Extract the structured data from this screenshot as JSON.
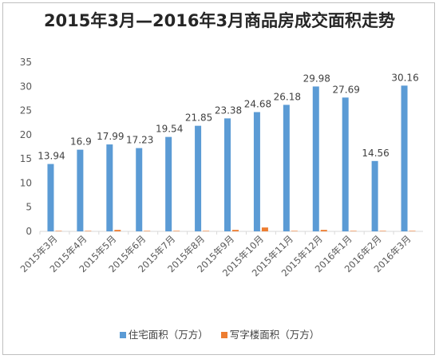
{
  "chart_data": {
    "type": "bar",
    "title": "2015年3月—2016年3月商品房成交面积走势",
    "categories": [
      "2015年3月",
      "2015年4月",
      "2015年5月",
      "2015年6月",
      "2015年7月",
      "2015年8月",
      "2015年9月",
      "2015年10月",
      "2015年11月",
      "2015年12月",
      "2016年1月",
      "2016年2月",
      "2016年3月"
    ],
    "series": [
      {
        "name": "住宅面积（万方）",
        "color": "#5B9BD5",
        "values": [
          13.94,
          16.9,
          17.99,
          17.23,
          19.54,
          21.85,
          23.38,
          24.68,
          26.18,
          29.98,
          27.69,
          14.56,
          30.16
        ],
        "labels": [
          "13.94",
          "16.9",
          "17.99",
          "17.23",
          "19.54",
          "21.85",
          "23.38",
          "24.68",
          "26.18",
          "29.98",
          "27.69",
          "14.56",
          "30.16"
        ]
      },
      {
        "name": "写字楼面积（万方）",
        "color": "#ED7D31",
        "values": [
          0.1,
          0.1,
          0.3,
          0.1,
          0.1,
          0.1,
          0.3,
          0.8,
          0.1,
          0.3,
          0.1,
          0.1,
          0.1
        ]
      }
    ],
    "yticks": [
      "0",
      "5",
      "10",
      "15",
      "20",
      "25",
      "30",
      "35"
    ],
    "ylim": [
      0,
      35
    ],
    "grid": false,
    "legend_position": "bottom"
  }
}
